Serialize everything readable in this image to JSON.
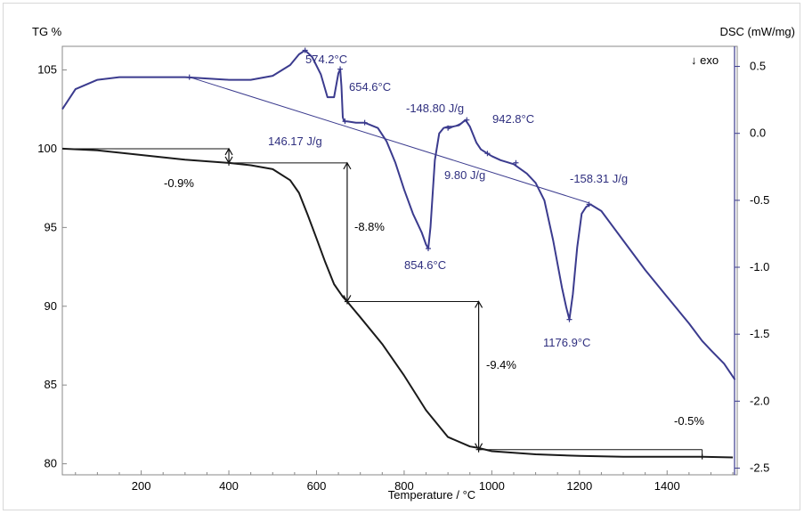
{
  "chart_data": {
    "type": "line",
    "xlabel": "Temperature / °C",
    "y_left_label": "TG %",
    "y_right_label": "DSC (mW/mg)",
    "exo_label": "↓ exo",
    "xlim": [
      20,
      1560
    ],
    "ylim_left": [
      79.3,
      106.5
    ],
    "ylim_right": [
      -2.55,
      0.65
    ],
    "x_ticks": [
      200,
      400,
      600,
      800,
      1000,
      1200,
      1400
    ],
    "y_left_ticks": [
      80,
      85,
      90,
      95,
      100,
      105
    ],
    "y_right_ticks": [
      -2.5,
      -2.0,
      -1.5,
      -1.0,
      -0.5,
      0.0,
      0.5
    ],
    "y_right_tick_labels": [
      "-2.5",
      "-2.0",
      "-1.5",
      "-1.0",
      "-0.5",
      "0.0",
      "0.5"
    ],
    "colors": {
      "tg": "#1a1a1a",
      "dsc": "#3b3b8e",
      "dsc_text": "#2f2f7f",
      "frame": "#888888"
    },
    "series": [
      {
        "key": "tg",
        "axis": "left",
        "x": [
          20,
          100,
          200,
          300,
          400,
          450,
          500,
          540,
          560,
          580,
          600,
          620,
          640,
          660,
          670,
          700,
          750,
          800,
          850,
          900,
          950,
          970,
          1000,
          1100,
          1200,
          1300,
          1400,
          1480,
          1550
        ],
        "y": [
          100,
          99.9,
          99.6,
          99.3,
          99.1,
          98.95,
          98.7,
          98.0,
          97.2,
          95.8,
          94.3,
          92.8,
          91.4,
          90.6,
          90.3,
          89.3,
          87.6,
          85.6,
          83.4,
          81.7,
          81.1,
          81.0,
          80.8,
          80.6,
          80.5,
          80.45,
          80.45,
          80.45,
          80.4
        ]
      },
      {
        "key": "dsc",
        "axis": "right",
        "x": [
          20,
          50,
          100,
          150,
          200,
          250,
          300,
          350,
          400,
          450,
          500,
          540,
          560,
          574,
          590,
          610,
          625,
          640,
          650,
          654,
          657,
          660,
          663,
          670,
          690,
          710,
          740,
          760,
          780,
          800,
          820,
          840,
          850,
          855,
          860,
          870,
          880,
          890,
          900,
          910,
          925,
          940,
          950,
          965,
          975,
          990,
          1000,
          1020,
          1050,
          1080,
          1100,
          1120,
          1140,
          1160,
          1170,
          1177,
          1185,
          1195,
          1205,
          1215,
          1225,
          1250,
          1300,
          1350,
          1400,
          1450,
          1480,
          1500,
          1530,
          1555
        ],
        "y": [
          0.18,
          0.33,
          0.4,
          0.42,
          0.42,
          0.42,
          0.42,
          0.41,
          0.4,
          0.4,
          0.43,
          0.51,
          0.59,
          0.62,
          0.57,
          0.44,
          0.27,
          0.27,
          0.45,
          0.48,
          0.35,
          0.12,
          0.09,
          0.09,
          0.08,
          0.08,
          0.04,
          -0.06,
          -0.22,
          -0.42,
          -0.6,
          -0.74,
          -0.83,
          -0.86,
          -0.7,
          -0.2,
          0.0,
          0.04,
          0.05,
          0.05,
          0.06,
          0.1,
          0.05,
          -0.07,
          -0.12,
          -0.15,
          -0.17,
          -0.2,
          -0.23,
          -0.3,
          -0.37,
          -0.5,
          -0.8,
          -1.15,
          -1.3,
          -1.39,
          -1.2,
          -0.85,
          -0.6,
          -0.55,
          -0.53,
          -0.58,
          -0.8,
          -1.02,
          -1.22,
          -1.42,
          -1.55,
          -1.62,
          -1.72,
          -1.84
        ]
      }
    ],
    "annotations": [
      {
        "text": "574.2°C"
      },
      {
        "text": "654.6°C"
      },
      {
        "text": "-148.80 J/g"
      },
      {
        "text": "942.8°C"
      },
      {
        "text": "146.17 J/g"
      },
      {
        "text": "9.80 J/g"
      },
      {
        "text": "-158.31 J/g"
      },
      {
        "text": "854.6°C"
      },
      {
        "text": "1176.9°C"
      },
      {
        "text": "-0.9%"
      },
      {
        "text": "-8.8%"
      },
      {
        "text": "-9.4%"
      },
      {
        "text": "-0.5%"
      }
    ]
  }
}
